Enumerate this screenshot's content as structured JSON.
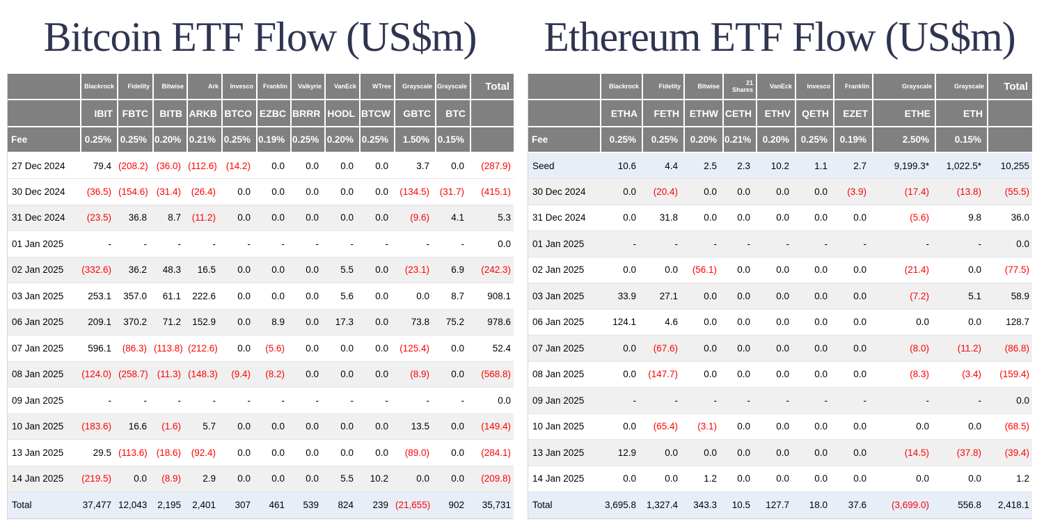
{
  "colors": {
    "header_bg": "#808080",
    "header_text": "#ffffff",
    "title_text": "#2f3550",
    "negative_value": "#fe0000",
    "value_text": "#000000",
    "stripe_row": "#f0f0f0",
    "highlight_row": "#e7eef8"
  },
  "chart_data": [
    {
      "type": "table",
      "title": "Bitcoin ETF Flow (US$m)",
      "fee_label": "Fee",
      "total_header": "Total",
      "providers": [
        "Blackrock",
        "Fidelity",
        "Bitwise",
        "Ark",
        "Invesco",
        "Franklin",
        "Valkyrie",
        "VanEck",
        "WTree",
        "Grayscale",
        "Grayscale"
      ],
      "tickers": [
        "IBIT",
        "FBTC",
        "BITB",
        "ARKB",
        "BTCO",
        "EZBC",
        "BRRR",
        "HODL",
        "BTCW",
        "GBTC",
        "BTC"
      ],
      "fees": [
        "0.25%",
        "0.25%",
        "0.20%",
        "0.21%",
        "0.25%",
        "0.19%",
        "0.25%",
        "0.20%",
        "0.25%",
        "1.50%",
        "0.15%"
      ],
      "rows": [
        {
          "label": "27 Dec 2024",
          "bg": "white",
          "values": [
            "79.4",
            "(208.2)",
            "(36.0)",
            "(112.6)",
            "(14.2)",
            "0.0",
            "0.0",
            "0.0",
            "0.0",
            "3.7",
            "0.0",
            "(287.9)"
          ]
        },
        {
          "label": "30 Dec 2024",
          "bg": "white",
          "values": [
            "(36.5)",
            "(154.6)",
            "(31.4)",
            "(26.4)",
            "0.0",
            "0.0",
            "0.0",
            "0.0",
            "0.0",
            "(134.5)",
            "(31.7)",
            "(415.1)"
          ]
        },
        {
          "label": "31 Dec 2024",
          "bg": "stripe",
          "values": [
            "(23.5)",
            "36.8",
            "8.7",
            "(11.2)",
            "0.0",
            "0.0",
            "0.0",
            "0.0",
            "0.0",
            "(9.6)",
            "4.1",
            "5.3"
          ]
        },
        {
          "label": "01 Jan 2025",
          "bg": "white",
          "values": [
            "-",
            "-",
            "-",
            "-",
            "-",
            "-",
            "-",
            "-",
            "-",
            "-",
            "-",
            "0.0"
          ]
        },
        {
          "label": "02 Jan 2025",
          "bg": "stripe",
          "values": [
            "(332.6)",
            "36.2",
            "48.3",
            "16.5",
            "0.0",
            "0.0",
            "0.0",
            "5.5",
            "0.0",
            "(23.1)",
            "6.9",
            "(242.3)"
          ]
        },
        {
          "label": "03 Jan 2025",
          "bg": "white",
          "values": [
            "253.1",
            "357.0",
            "61.1",
            "222.6",
            "0.0",
            "0.0",
            "0.0",
            "5.6",
            "0.0",
            "0.0",
            "8.7",
            "908.1"
          ]
        },
        {
          "label": "06 Jan 2025",
          "bg": "stripe",
          "values": [
            "209.1",
            "370.2",
            "71.2",
            "152.9",
            "0.0",
            "8.9",
            "0.0",
            "17.3",
            "0.0",
            "73.8",
            "75.2",
            "978.6"
          ]
        },
        {
          "label": "07 Jan 2025",
          "bg": "white",
          "values": [
            "596.1",
            "(86.3)",
            "(113.8)",
            "(212.6)",
            "0.0",
            "(5.6)",
            "0.0",
            "0.0",
            "0.0",
            "(125.4)",
            "0.0",
            "52.4"
          ]
        },
        {
          "label": "08 Jan 2025",
          "bg": "stripe",
          "values": [
            "(124.0)",
            "(258.7)",
            "(11.3)",
            "(148.3)",
            "(9.4)",
            "(8.2)",
            "0.0",
            "0.0",
            "0.0",
            "(8.9)",
            "0.0",
            "(568.8)"
          ]
        },
        {
          "label": "09 Jan 2025",
          "bg": "white",
          "values": [
            "-",
            "-",
            "-",
            "-",
            "-",
            "-",
            "-",
            "-",
            "-",
            "-",
            "-",
            "0.0"
          ]
        },
        {
          "label": "10 Jan 2025",
          "bg": "stripe",
          "values": [
            "(183.6)",
            "16.6",
            "(1.6)",
            "5.7",
            "0.0",
            "0.0",
            "0.0",
            "0.0",
            "0.0",
            "13.5",
            "0.0",
            "(149.4)"
          ]
        },
        {
          "label": "13 Jan 2025",
          "bg": "white",
          "values": [
            "29.5",
            "(113.6)",
            "(18.6)",
            "(92.4)",
            "0.0",
            "0.0",
            "0.0",
            "0.0",
            "0.0",
            "(89.0)",
            "0.0",
            "(284.1)"
          ]
        },
        {
          "label": "14 Jan 2025",
          "bg": "stripe",
          "values": [
            "(219.5)",
            "0.0",
            "(8.9)",
            "2.9",
            "0.0",
            "0.0",
            "0.0",
            "5.5",
            "10.2",
            "0.0",
            "0.0",
            "(209.8)"
          ]
        },
        {
          "label": "Total",
          "bg": "highlight",
          "values": [
            "37,477",
            "12,043",
            "2,195",
            "2,401",
            "307",
            "461",
            "539",
            "824",
            "239",
            "(21,655)",
            "902",
            "35,731"
          ]
        }
      ]
    },
    {
      "type": "table",
      "title": "Ethereum ETF Flow (US$m)",
      "fee_label": "Fee",
      "total_header": "Total",
      "providers": [
        "Blackrock",
        "Fidelity",
        "Bitwise",
        "21 Shares",
        "VanEck",
        "Invesco",
        "Franklin",
        "Grayscale",
        "Grayscale"
      ],
      "tickers": [
        "ETHA",
        "FETH",
        "ETHW",
        "CETH",
        "ETHV",
        "QETH",
        "EZET",
        "ETHE",
        "ETH"
      ],
      "fees": [
        "0.25%",
        "0.25%",
        "0.20%",
        "0.21%",
        "0.20%",
        "0.25%",
        "0.19%",
        "2.50%",
        "0.15%"
      ],
      "rows": [
        {
          "label": "Seed",
          "bg": "highlight",
          "values": [
            "10.6",
            "4.4",
            "2.5",
            "2.3",
            "10.2",
            "1.1",
            "2.7",
            "9,199.3*",
            "1,022.5*",
            "10,255"
          ]
        },
        {
          "label": "30 Dec 2024",
          "bg": "stripe",
          "values": [
            "0.0",
            "(20.4)",
            "0.0",
            "0.0",
            "0.0",
            "0.0",
            "(3.9)",
            "(17.4)",
            "(13.8)",
            "(55.5)"
          ]
        },
        {
          "label": "31 Dec 2024",
          "bg": "white",
          "values": [
            "0.0",
            "31.8",
            "0.0",
            "0.0",
            "0.0",
            "0.0",
            "0.0",
            "(5.6)",
            "9.8",
            "36.0"
          ]
        },
        {
          "label": "01 Jan 2025",
          "bg": "stripe",
          "values": [
            "-",
            "-",
            "-",
            "-",
            "-",
            "-",
            "-",
            "-",
            "-",
            "0.0"
          ]
        },
        {
          "label": "02 Jan 2025",
          "bg": "white",
          "values": [
            "0.0",
            "0.0",
            "(56.1)",
            "0.0",
            "0.0",
            "0.0",
            "0.0",
            "(21.4)",
            "0.0",
            "(77.5)"
          ]
        },
        {
          "label": "03 Jan 2025",
          "bg": "stripe",
          "values": [
            "33.9",
            "27.1",
            "0.0",
            "0.0",
            "0.0",
            "0.0",
            "0.0",
            "(7.2)",
            "5.1",
            "58.9"
          ]
        },
        {
          "label": "06 Jan 2025",
          "bg": "white",
          "values": [
            "124.1",
            "4.6",
            "0.0",
            "0.0",
            "0.0",
            "0.0",
            "0.0",
            "0.0",
            "0.0",
            "128.7"
          ]
        },
        {
          "label": "07 Jan 2025",
          "bg": "stripe",
          "values": [
            "0.0",
            "(67.6)",
            "0.0",
            "0.0",
            "0.0",
            "0.0",
            "0.0",
            "(8.0)",
            "(11.2)",
            "(86.8)"
          ]
        },
        {
          "label": "08 Jan 2025",
          "bg": "white",
          "values": [
            "0.0",
            "(147.7)",
            "0.0",
            "0.0",
            "0.0",
            "0.0",
            "0.0",
            "(8.3)",
            "(3.4)",
            "(159.4)"
          ]
        },
        {
          "label": "09 Jan 2025",
          "bg": "stripe",
          "values": [
            "-",
            "-",
            "-",
            "-",
            "-",
            "-",
            "-",
            "-",
            "-",
            "0.0"
          ]
        },
        {
          "label": "10 Jan 2025",
          "bg": "white",
          "values": [
            "0.0",
            "(65.4)",
            "(3.1)",
            "0.0",
            "0.0",
            "0.0",
            "0.0",
            "0.0",
            "0.0",
            "(68.5)"
          ]
        },
        {
          "label": "13 Jan 2025",
          "bg": "stripe",
          "values": [
            "12.9",
            "0.0",
            "0.0",
            "0.0",
            "0.0",
            "0.0",
            "0.0",
            "(14.5)",
            "(37.8)",
            "(39.4)"
          ]
        },
        {
          "label": "14 Jan 2025",
          "bg": "white",
          "values": [
            "0.0",
            "0.0",
            "1.2",
            "0.0",
            "0.0",
            "0.0",
            "0.0",
            "0.0",
            "0.0",
            "1.2"
          ]
        },
        {
          "label": "Total",
          "bg": "highlight",
          "values": [
            "3,695.8",
            "1,327.4",
            "343.3",
            "10.5",
            "127.7",
            "18.0",
            "37.6",
            "(3,699.0)",
            "556.8",
            "2,418.1"
          ]
        }
      ]
    }
  ]
}
